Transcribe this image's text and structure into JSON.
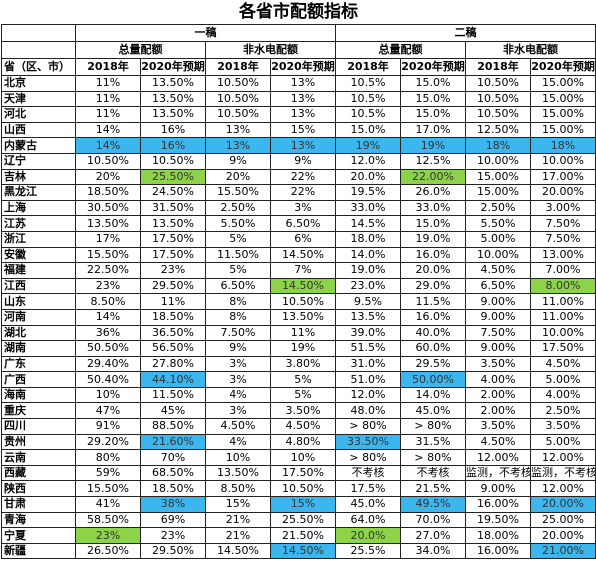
{
  "table": {
    "title": "各省市配额指标",
    "group_headers": [
      "一稿",
      "二稿"
    ],
    "sub_headers": [
      "总量配额",
      "非水电配额",
      "总量配额",
      "非水电配额"
    ],
    "column_headers": [
      "省（区、市）",
      "2018年",
      "2020年预期",
      "2018年",
      "2020年预期",
      "2018年",
      "2020年预期",
      "2018年",
      "2020年预期"
    ],
    "rows": [
      [
        "北京",
        "11%",
        "13.50%",
        "10.50%",
        "13%",
        "10.5%",
        "15.0%",
        "10.50%",
        "15.00%"
      ],
      [
        "天津",
        "11%",
        "13.50%",
        "10.50%",
        "13%",
        "10.5%",
        "15.0%",
        "10.50%",
        "15.00%"
      ],
      [
        "河北",
        "11%",
        "13.50%",
        "10.50%",
        "13%",
        "10.5%",
        "15.0%",
        "10.50%",
        "15.00%"
      ],
      [
        "山西",
        "14%",
        "16%",
        "13%",
        "15%",
        "15.0%",
        "17.0%",
        "12.50%",
        "15.00%"
      ],
      [
        "内蒙古",
        "14%",
        "16%",
        "13%",
        "13%",
        "19%",
        "19%",
        "18%",
        "18%"
      ],
      [
        "辽宁",
        "10.50%",
        "10.50%",
        "9%",
        "9%",
        "12.0%",
        "12.5%",
        "10.00%",
        "10.00%"
      ],
      [
        "吉林",
        "20%",
        "25.50%",
        "20%",
        "22%",
        "20.0%",
        "22.00%",
        "15.00%",
        "17.00%"
      ],
      [
        "黑龙江",
        "18.50%",
        "24.50%",
        "15.50%",
        "22%",
        "19.5%",
        "26.0%",
        "15.00%",
        "20.00%"
      ],
      [
        "上海",
        "30.50%",
        "31.50%",
        "2.50%",
        "3%",
        "33.0%",
        "33.0%",
        "2.50%",
        "3.00%"
      ],
      [
        "江苏",
        "13.50%",
        "13.50%",
        "5.50%",
        "6.50%",
        "14.5%",
        "15.0%",
        "5.50%",
        "7.50%"
      ],
      [
        "浙江",
        "17%",
        "17.50%",
        "5%",
        "6%",
        "18.0%",
        "19.0%",
        "5.00%",
        "7.50%"
      ],
      [
        "安徽",
        "15.50%",
        "17.50%",
        "11.50%",
        "14.50%",
        "14.0%",
        "16.0%",
        "10.00%",
        "13.00%"
      ],
      [
        "福建",
        "22.50%",
        "23%",
        "5%",
        "7%",
        "19.0%",
        "20.0%",
        "4.50%",
        "7.00%"
      ],
      [
        "江西",
        "23%",
        "29.50%",
        "6.50%",
        "14.50%",
        "23.0%",
        "29.0%",
        "6.50%",
        "8.00%"
      ],
      [
        "山东",
        "8.50%",
        "11%",
        "8%",
        "10.50%",
        "9.5%",
        "11.5%",
        "9.00%",
        "11.00%"
      ],
      [
        "河南",
        "14%",
        "18.50%",
        "8%",
        "13.50%",
        "13.5%",
        "16.0%",
        "9.00%",
        "11.00%"
      ],
      [
        "湖北",
        "36%",
        "36.50%",
        "7.50%",
        "11%",
        "39.0%",
        "40.0%",
        "7.50%",
        "10.00%"
      ],
      [
        "湖南",
        "50.50%",
        "56.50%",
        "9%",
        "19%",
        "51.5%",
        "60.0%",
        "9.00%",
        "17.50%"
      ],
      [
        "广东",
        "29.40%",
        "27.80%",
        "3%",
        "3.80%",
        "31.0%",
        "29.5%",
        "3.50%",
        "4.50%"
      ],
      [
        "广西",
        "50.40%",
        "44.10%",
        "3%",
        "5%",
        "51.0%",
        "50.00%",
        "4.00%",
        "5.00%"
      ],
      [
        "海南",
        "10%",
        "11.50%",
        "4%",
        "5%",
        "12.0%",
        "14.0%",
        "2.00%",
        "4.00%"
      ],
      [
        "重庆",
        "47%",
        "45%",
        "3%",
        "3.50%",
        "48.0%",
        "45.0%",
        "2.00%",
        "2.50%"
      ],
      [
        "四川",
        "91%",
        "88.50%",
        "4.50%",
        "4.50%",
        "> 80%",
        "> 80%",
        "3.50%",
        "3.50%"
      ],
      [
        "贵州",
        "29.20%",
        "21.60%",
        "4%",
        "4.80%",
        "33.50%",
        "31.5%",
        "4.50%",
        "5.00%"
      ],
      [
        "云南",
        "80%",
        "70%",
        "10%",
        "10%",
        "> 80%",
        "> 80%",
        "12.00%",
        "12.00%"
      ],
      [
        "西藏",
        "59%",
        "68.50%",
        "13.50%",
        "17.50%",
        "不考核",
        "不考核",
        "监测，不考核",
        "监测，不考核"
      ],
      [
        "陕西",
        "15.50%",
        "18.50%",
        "8.50%",
        "10.50%",
        "17.5%",
        "21.5%",
        "9.00%",
        "12.00%"
      ],
      [
        "甘肃",
        "41%",
        "38%",
        "15%",
        "15%",
        "45.0%",
        "49.5%",
        "16.00%",
        "20.00%"
      ],
      [
        "青海",
        "58.50%",
        "69%",
        "21%",
        "25.50%",
        "64.0%",
        "70.0%",
        "19.50%",
        "25.00%"
      ],
      [
        "宁夏",
        "23%",
        "23%",
        "21%",
        "21.50%",
        "20.0%",
        "27.0%",
        "18.00%",
        "20.00%"
      ],
      [
        "新疆",
        "26.50%",
        "29.50%",
        "14.50%",
        "14.50%",
        "25.5%",
        "34.0%",
        "16.00%",
        "21.00%"
      ]
    ]
  }
}
